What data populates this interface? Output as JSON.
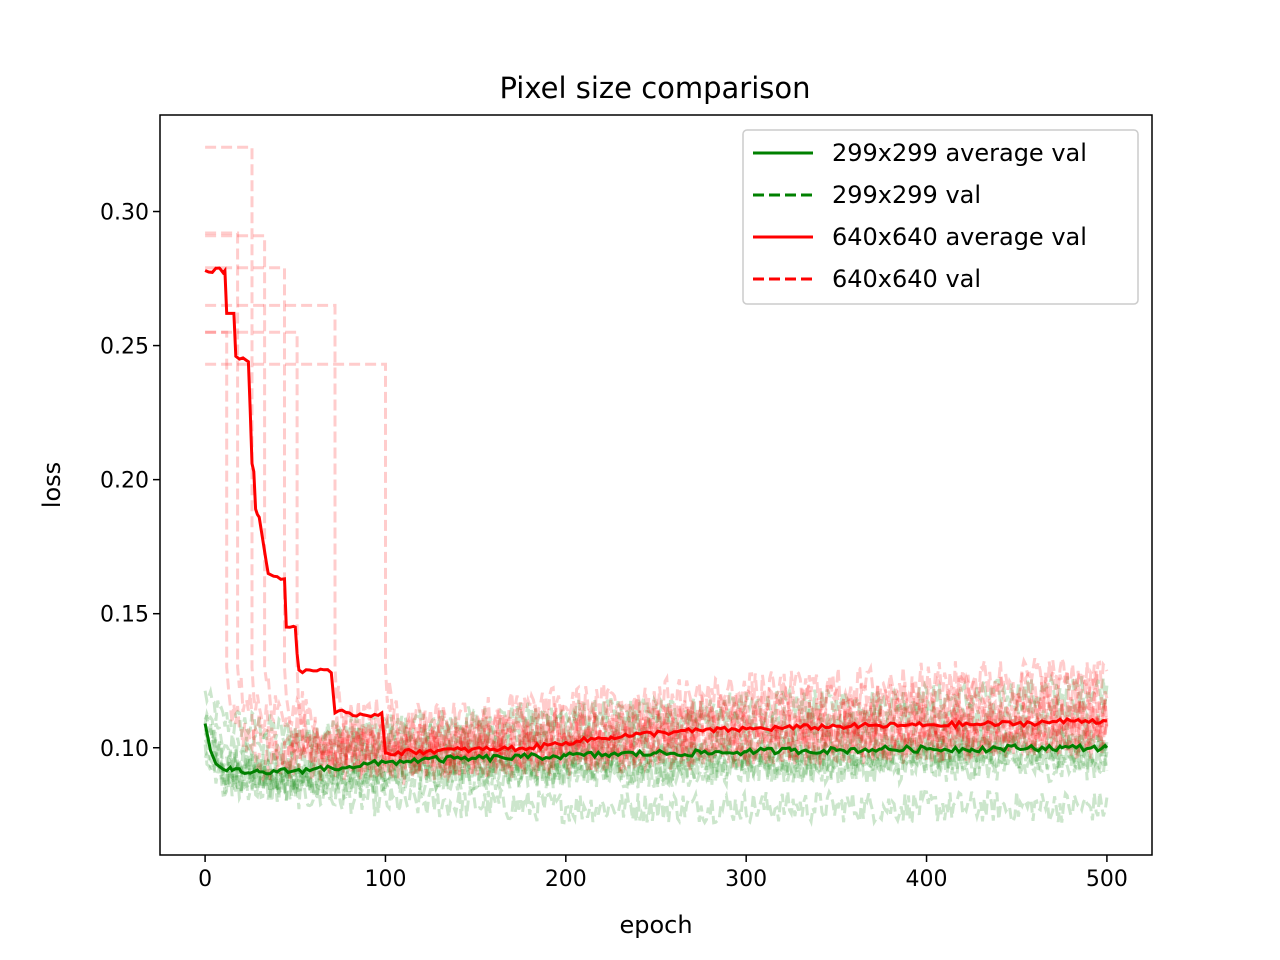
{
  "chart_data": {
    "type": "line",
    "title": "Pixel size comparison",
    "xlabel": "epoch",
    "ylabel": "loss",
    "xlim": [
      -25,
      525
    ],
    "ylim": [
      0.06,
      0.336
    ],
    "xticks": [
      0,
      100,
      200,
      300,
      400,
      500
    ],
    "xtick_labels": [
      "0",
      "100",
      "200",
      "300",
      "400",
      "500"
    ],
    "yticks": [
      0.1,
      0.15,
      0.2,
      0.25,
      0.3
    ],
    "ytick_labels": [
      "0.10",
      "0.15",
      "0.20",
      "0.25",
      "0.30"
    ],
    "grid": false,
    "legend_position": "upper right",
    "colors": {
      "green": "#008000",
      "red": "#ff0000"
    },
    "legend": [
      {
        "label": "299x299 average val",
        "color": "#008000",
        "dash": "solid"
      },
      {
        "label": "299x299 val",
        "color": "#008000",
        "dash": "dashed"
      },
      {
        "label": "640x640 average val",
        "color": "#ff0000",
        "dash": "solid"
      },
      {
        "label": "640x640 val",
        "color": "#ff0000",
        "dash": "dashed"
      }
    ],
    "series": [
      {
        "name": "299x299 average val",
        "style": "solid",
        "color": "#008000",
        "x": [
          0,
          3,
          6,
          10,
          15,
          20,
          25,
          30,
          40,
          50,
          60,
          70,
          80,
          100,
          120,
          150,
          175,
          200,
          225,
          250,
          275,
          300,
          325,
          350,
          375,
          400,
          425,
          450,
          475,
          500
        ],
        "y": [
          0.109,
          0.099,
          0.094,
          0.092,
          0.0915,
          0.091,
          0.0905,
          0.091,
          0.091,
          0.0915,
          0.092,
          0.0925,
          0.093,
          0.0945,
          0.0955,
          0.096,
          0.0965,
          0.097,
          0.0975,
          0.098,
          0.098,
          0.0985,
          0.099,
          0.099,
          0.0995,
          0.0995,
          0.0995,
          0.1,
          0.1,
          0.1
        ]
      },
      {
        "name": "640x640 average val",
        "style": "solid",
        "color": "#ff0000",
        "x": [
          0,
          11,
          12,
          16,
          17,
          24,
          25,
          26,
          27,
          28,
          29,
          30,
          34,
          35,
          38,
          44,
          45,
          50,
          51,
          52,
          58,
          70,
          72,
          80,
          90,
          98,
          100,
          101,
          130,
          160,
          180,
          200,
          225,
          260,
          300,
          350,
          400,
          450,
          480,
          500
        ],
        "y": [
          0.278,
          0.278,
          0.262,
          0.262,
          0.246,
          0.244,
          0.226,
          0.206,
          0.203,
          0.189,
          0.187,
          0.186,
          0.169,
          0.165,
          0.164,
          0.163,
          0.145,
          0.145,
          0.135,
          0.129,
          0.129,
          0.128,
          0.113,
          0.113,
          0.112,
          0.113,
          0.098,
          0.098,
          0.099,
          0.0995,
          0.1,
          0.102,
          0.104,
          0.106,
          0.107,
          0.108,
          0.1085,
          0.109,
          0.11,
          0.11
        ]
      }
    ],
    "val_runs_299": {
      "name": "299x299 val",
      "style": "dashed",
      "color": "#008000",
      "alpha": 0.2,
      "runs": [
        {
          "x": [
            0,
            10,
            50,
            100,
            150,
            200,
            250,
            300,
            350,
            400,
            450,
            500
          ],
          "y": [
            0.12,
            0.11,
            0.105,
            0.107,
            0.11,
            0.112,
            0.113,
            0.115,
            0.116,
            0.118,
            0.12,
            0.122
          ]
        },
        {
          "x": [
            0,
            10,
            50,
            100,
            150,
            200,
            250,
            300,
            350,
            400,
            450,
            500
          ],
          "y": [
            0.1,
            0.088,
            0.083,
            0.08,
            0.079,
            0.078,
            0.078,
            0.078,
            0.078,
            0.078,
            0.078,
            0.078
          ]
        },
        {
          "x": [
            0,
            10,
            50,
            100,
            150,
            200,
            250,
            300,
            350,
            400,
            450,
            500
          ],
          "y": [
            0.105,
            0.09,
            0.088,
            0.089,
            0.09,
            0.091,
            0.091,
            0.092,
            0.092,
            0.093,
            0.093,
            0.094
          ]
        },
        {
          "x": [
            0,
            10,
            50,
            100,
            150,
            200,
            250,
            300,
            350,
            400,
            450,
            500
          ],
          "y": [
            0.11,
            0.095,
            0.094,
            0.097,
            0.1,
            0.101,
            0.102,
            0.102,
            0.103,
            0.103,
            0.104,
            0.104
          ]
        },
        {
          "x": [
            0,
            10,
            50,
            100,
            150,
            200,
            250,
            300,
            350,
            400,
            450,
            500
          ],
          "y": [
            0.098,
            0.087,
            0.086,
            0.088,
            0.09,
            0.091,
            0.092,
            0.093,
            0.094,
            0.095,
            0.096,
            0.097
          ]
        },
        {
          "x": [
            0,
            10,
            50,
            100,
            150,
            200,
            250,
            300,
            350,
            400,
            450,
            500
          ],
          "y": [
            0.112,
            0.1,
            0.1,
            0.102,
            0.105,
            0.107,
            0.108,
            0.109,
            0.11,
            0.111,
            0.112,
            0.113
          ]
        },
        {
          "x": [
            0,
            10,
            50,
            100,
            150,
            200,
            250,
            300,
            350,
            400,
            450,
            500
          ],
          "y": [
            0.102,
            0.091,
            0.09,
            0.093,
            0.095,
            0.096,
            0.097,
            0.098,
            0.098,
            0.099,
            0.1,
            0.1
          ]
        },
        {
          "x": [
            0,
            10,
            50,
            100,
            150,
            200,
            250,
            300,
            350,
            400,
            450,
            500
          ],
          "y": [
            0.108,
            0.094,
            0.089,
            0.09,
            0.092,
            0.094,
            0.095,
            0.096,
            0.097,
            0.098,
            0.098,
            0.099
          ]
        }
      ]
    },
    "val_runs_640": {
      "name": "640x640 val",
      "style": "dashed",
      "color": "#ff0000",
      "alpha": 0.2,
      "runs": [
        {
          "drop": 12,
          "start": 0.255,
          "x": [
            30,
            100,
            150,
            200,
            250,
            300,
            350,
            400,
            450,
            500
          ],
          "y": [
            0.095,
            0.096,
            0.097,
            0.099,
            0.101,
            0.102,
            0.103,
            0.104,
            0.105,
            0.106
          ]
        },
        {
          "drop": 18,
          "start": 0.292,
          "x": [
            35,
            100,
            150,
            200,
            250,
            300,
            350,
            400,
            450,
            500
          ],
          "y": [
            0.1,
            0.101,
            0.103,
            0.106,
            0.108,
            0.11,
            0.111,
            0.112,
            0.113,
            0.114
          ]
        },
        {
          "drop": 26,
          "start": 0.324,
          "x": [
            40,
            100,
            150,
            200,
            250,
            300,
            350,
            400,
            450,
            500
          ],
          "y": [
            0.098,
            0.099,
            0.1,
            0.102,
            0.104,
            0.106,
            0.107,
            0.108,
            0.109,
            0.11
          ]
        },
        {
          "drop": 33,
          "start": 0.291,
          "x": [
            50,
            100,
            150,
            200,
            250,
            300,
            350,
            400,
            450,
            500
          ],
          "y": [
            0.105,
            0.105,
            0.107,
            0.109,
            0.112,
            0.114,
            0.116,
            0.118,
            0.12,
            0.122
          ]
        },
        {
          "drop": 44,
          "start": 0.279,
          "x": [
            60,
            100,
            150,
            200,
            250,
            300,
            350,
            400,
            450,
            500
          ],
          "y": [
            0.1,
            0.1,
            0.101,
            0.104,
            0.107,
            0.109,
            0.11,
            0.111,
            0.112,
            0.113
          ]
        },
        {
          "drop": 51,
          "start": 0.255,
          "x": [
            65,
            100,
            150,
            200,
            250,
            300,
            350,
            400,
            450,
            500
          ],
          "y": [
            0.095,
            0.096,
            0.097,
            0.099,
            0.1,
            0.101,
            0.102,
            0.103,
            0.104,
            0.105
          ]
        },
        {
          "drop": 72,
          "start": 0.265,
          "x": [
            80,
            100,
            150,
            200,
            250,
            300,
            350,
            400,
            450,
            500
          ],
          "y": [
            0.112,
            0.11,
            0.112,
            0.115,
            0.118,
            0.12,
            0.122,
            0.124,
            0.126,
            0.127
          ]
        },
        {
          "drop": 100,
          "start": 0.243,
          "x": [
            110,
            150,
            200,
            250,
            300,
            350,
            400,
            450,
            500
          ],
          "y": [
            0.094,
            0.095,
            0.097,
            0.099,
            0.1,
            0.101,
            0.102,
            0.103,
            0.104
          ]
        }
      ]
    }
  }
}
